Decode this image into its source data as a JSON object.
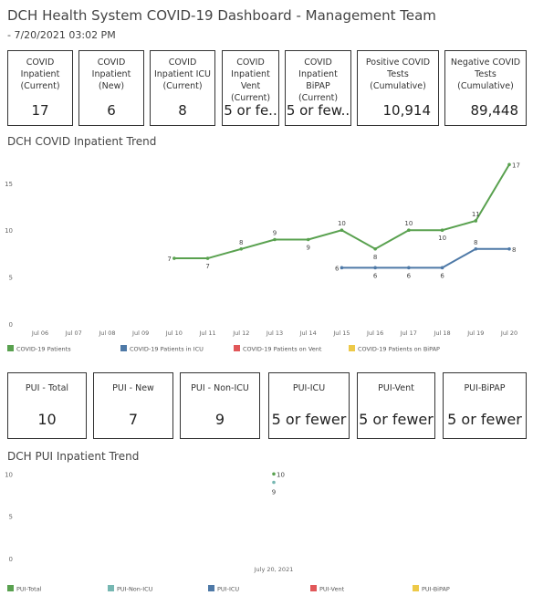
{
  "header": {
    "title": "DCH Health System COVID-19 Dashboard - Management Team",
    "subtitle": "- 7/20/2021 03:02 PM"
  },
  "kpis": [
    {
      "label": [
        "COVID",
        "Inpatient",
        "(Current)"
      ],
      "value": "17"
    },
    {
      "label": [
        "COVID",
        "Inpatient",
        "(New)"
      ],
      "value": "6"
    },
    {
      "label": [
        "COVID",
        "Inpatient ICU",
        "(Current)"
      ],
      "value": "8"
    },
    {
      "label": [
        "COVID",
        "Inpatient Vent",
        "(Current)"
      ],
      "value": "5 or fe.."
    },
    {
      "label": [
        "COVID",
        "Inpatient BiPAP",
        "(Current)"
      ],
      "value": "5 or few.."
    },
    {
      "label": [
        "Positive COVID",
        "Tests",
        "(Cumulative)"
      ],
      "value": "10,914"
    },
    {
      "label": [
        "Negative COVID",
        "Tests",
        "(Cumulative)"
      ],
      "value": "89,448"
    }
  ],
  "pui_kpis": [
    {
      "label": [
        "PUI - Total"
      ],
      "value": "10"
    },
    {
      "label": [
        "PUI - New"
      ],
      "value": "7"
    },
    {
      "label": [
        "PUI - Non-ICU"
      ],
      "value": "9"
    },
    {
      "label": [
        "PUI-ICU"
      ],
      "value": "5 or fewer"
    },
    {
      "label": [
        "PUI-Vent"
      ],
      "value": "5 or fewer"
    },
    {
      "label": [
        "PUI-BiPAP"
      ],
      "value": "5 or fewer"
    }
  ],
  "chart_data": [
    {
      "type": "line",
      "title": "DCH COVID Inpatient Trend",
      "categories": [
        "Jul 06",
        "Jul 07",
        "Jul 08",
        "Jul 09",
        "Jul 10",
        "Jul 11",
        "Jul 12",
        "Jul 13",
        "Jul 14",
        "Jul 15",
        "Jul 16",
        "Jul 17",
        "Jul 18",
        "Jul 19",
        "Jul 20"
      ],
      "ylim": [
        0,
        18
      ],
      "yticks": [
        0,
        5,
        10,
        15
      ],
      "grid": false,
      "legend": "bottom",
      "series": [
        {
          "name": "COVID-19 Patients",
          "color": "#59a14f",
          "values": [
            null,
            null,
            null,
            null,
            7,
            7,
            8,
            9,
            9,
            10,
            8,
            10,
            10,
            11,
            17
          ]
        },
        {
          "name": "COVID-19 Patients in ICU",
          "color": "#4e79a7",
          "values": [
            null,
            null,
            null,
            null,
            null,
            null,
            null,
            null,
            null,
            6,
            6,
            6,
            6,
            8,
            8
          ]
        },
        {
          "name": "COVID-19 Patients on Vent",
          "color": "#e15759",
          "values": [
            null,
            null,
            null,
            null,
            null,
            null,
            null,
            null,
            null,
            null,
            null,
            null,
            null,
            null,
            null
          ]
        },
        {
          "name": "COVID-19 Patients on BiPAP",
          "color": "#edc948",
          "values": [
            null,
            null,
            null,
            null,
            null,
            null,
            null,
            null,
            null,
            null,
            null,
            null,
            null,
            null,
            null
          ]
        }
      ]
    },
    {
      "type": "line",
      "title": "DCH PUI Inpatient Trend",
      "categories": [
        "July 20, 2021"
      ],
      "ylim": [
        0,
        11
      ],
      "yticks": [
        0,
        5,
        10
      ],
      "grid": false,
      "legend": "bottom",
      "series": [
        {
          "name": "PUI-Total",
          "color": "#59a14f",
          "values": [
            10
          ]
        },
        {
          "name": "PUI-Non-ICU",
          "color": "#76b7b2",
          "values": [
            9
          ]
        },
        {
          "name": "PUI-ICU",
          "color": "#4e79a7",
          "values": [
            null
          ]
        },
        {
          "name": "PUI-Vent",
          "color": "#e15759",
          "values": [
            null
          ]
        },
        {
          "name": "PUI-BiPAP",
          "color": "#edc948",
          "values": [
            null
          ]
        }
      ]
    }
  ]
}
